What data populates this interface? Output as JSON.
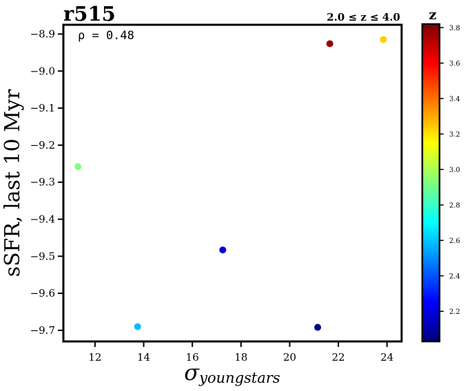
{
  "chart_data": {
    "type": "scatter",
    "title": "r515",
    "subtitle": "2.0 ≤ z ≤ 4.0",
    "xlabel_main": "σ",
    "xlabel_sub": "youngstars",
    "ylabel": "sSFR, last 10 Myr",
    "annotation": "ρ = 0.48",
    "xlim": [
      10.7,
      24.6
    ],
    "ylim": [
      -9.73,
      -8.875
    ],
    "xticks": [
      12,
      14,
      16,
      18,
      20,
      22,
      24
    ],
    "yticks": [
      -8.9,
      -9.0,
      -9.1,
      -9.2,
      -9.3,
      -9.4,
      -9.5,
      -9.6,
      -9.7
    ],
    "grid": false,
    "points": [
      {
        "x": 11.3,
        "y": -9.258,
        "z": 2.93
      },
      {
        "x": 13.75,
        "y": -9.69,
        "z": 2.58
      },
      {
        "x": 17.25,
        "y": -9.483,
        "z": 2.18
      },
      {
        "x": 21.15,
        "y": -9.692,
        "z": 2.05
      },
      {
        "x": 21.65,
        "y": -8.926,
        "z": 3.78
      },
      {
        "x": 23.85,
        "y": -8.915,
        "z": 3.24
      }
    ],
    "colorbar": {
      "label": "z",
      "colormap": "jet",
      "min": 2.03,
      "max": 3.82,
      "ticks": [
        2.2,
        2.4,
        2.6,
        2.8,
        3.0,
        3.2,
        3.4,
        3.6,
        3.8
      ]
    }
  }
}
